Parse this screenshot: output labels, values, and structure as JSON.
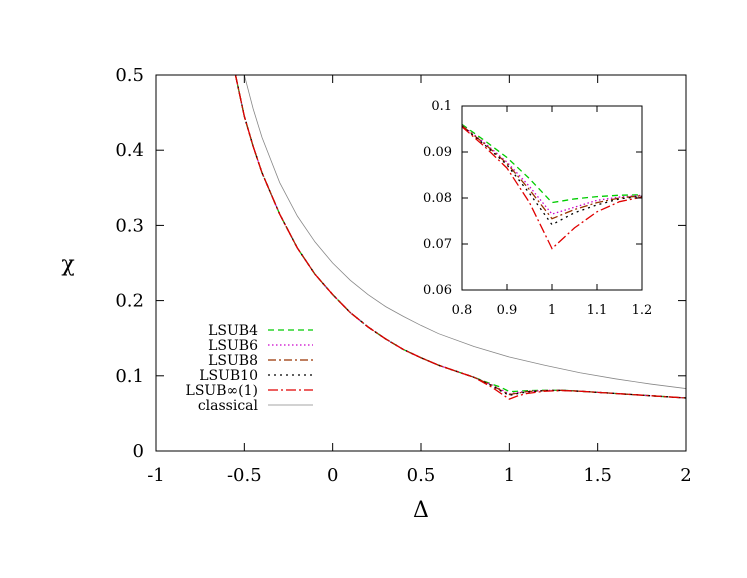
{
  "chart_data": [
    {
      "type": "line",
      "title": "",
      "xlabel": "Δ",
      "ylabel": "χ",
      "xlim": [
        -1,
        2
      ],
      "ylim": [
        0,
        0.5
      ],
      "xticks": [
        -1,
        -0.5,
        0,
        0.5,
        1,
        1.5,
        2
      ],
      "xtick_labels": [
        "-1",
        "-0.5",
        "0",
        "0.5",
        "1",
        "1.5",
        "2"
      ],
      "yticks": [
        0,
        0.1,
        0.2,
        0.3,
        0.4,
        0.5
      ],
      "ytick_labels": [
        "0",
        "0.1",
        "0.2",
        "0.3",
        "0.4",
        "0.5"
      ],
      "grid": false,
      "legend_position": "bottom-left",
      "series": [
        {
          "name": "LSUB4",
          "color": "#00cc00",
          "dash": "dashed",
          "x": [
            -0.55,
            -0.5,
            -0.45,
            -0.4,
            -0.3,
            -0.2,
            -0.1,
            0,
            0.1,
            0.2,
            0.3,
            0.4,
            0.5,
            0.6,
            0.7,
            0.8,
            0.9,
            0.95,
            1.0,
            1.05,
            1.1,
            1.2,
            1.3,
            1.4,
            1.5,
            1.6,
            1.7,
            1.8,
            1.9,
            2.0
          ],
          "y": [
            0.5,
            0.445,
            0.405,
            0.37,
            0.315,
            0.27,
            0.235,
            0.208,
            0.184,
            0.165,
            0.149,
            0.135,
            0.124,
            0.114,
            0.106,
            0.098,
            0.089,
            0.085,
            0.079,
            0.0795,
            0.0802,
            0.0808,
            0.0808,
            0.0795,
            0.078,
            0.0765,
            0.075,
            0.0735,
            0.072,
            0.0705
          ]
        },
        {
          "name": "LSUB6",
          "color": "#cc00cc",
          "dash": "dotted",
          "x": [
            -0.55,
            -0.5,
            -0.45,
            -0.4,
            -0.3,
            -0.2,
            -0.1,
            0,
            0.1,
            0.2,
            0.3,
            0.4,
            0.5,
            0.6,
            0.7,
            0.8,
            0.9,
            0.95,
            1.0,
            1.05,
            1.1,
            1.2,
            1.3,
            1.4,
            1.5,
            1.6,
            1.7,
            1.8,
            1.9,
            2.0
          ],
          "y": [
            0.5,
            0.445,
            0.405,
            0.37,
            0.315,
            0.27,
            0.235,
            0.208,
            0.184,
            0.165,
            0.149,
            0.135,
            0.124,
            0.114,
            0.106,
            0.098,
            0.088,
            0.082,
            0.076,
            0.078,
            0.0795,
            0.0805,
            0.0808,
            0.0795,
            0.078,
            0.0765,
            0.075,
            0.0735,
            0.072,
            0.0705
          ]
        },
        {
          "name": "LSUB8",
          "color": "#993300",
          "dash": "dashdot",
          "x": [
            -0.55,
            -0.5,
            -0.45,
            -0.4,
            -0.3,
            -0.2,
            -0.1,
            0,
            0.1,
            0.2,
            0.3,
            0.4,
            0.5,
            0.6,
            0.7,
            0.8,
            0.9,
            0.95,
            1.0,
            1.05,
            1.1,
            1.2,
            1.3,
            1.4,
            1.5,
            1.6,
            1.7,
            1.8,
            1.9,
            2.0
          ],
          "y": [
            0.5,
            0.445,
            0.405,
            0.37,
            0.315,
            0.27,
            0.235,
            0.208,
            0.184,
            0.165,
            0.149,
            0.135,
            0.124,
            0.114,
            0.106,
            0.098,
            0.0875,
            0.081,
            0.075,
            0.0772,
            0.079,
            0.0803,
            0.0807,
            0.0795,
            0.078,
            0.0765,
            0.075,
            0.0735,
            0.072,
            0.0705
          ]
        },
        {
          "name": "LSUB10",
          "color": "#000000",
          "dash": "densedot",
          "x": [
            -0.55,
            -0.5,
            -0.45,
            -0.4,
            -0.3,
            -0.2,
            -0.1,
            0,
            0.1,
            0.2,
            0.3,
            0.4,
            0.5,
            0.6,
            0.7,
            0.8,
            0.9,
            0.95,
            1.0,
            1.05,
            1.1,
            1.2,
            1.3,
            1.4,
            1.5,
            1.6,
            1.7,
            1.8,
            1.9,
            2.0
          ],
          "y": [
            0.5,
            0.445,
            0.405,
            0.37,
            0.315,
            0.27,
            0.235,
            0.208,
            0.184,
            0.165,
            0.149,
            0.135,
            0.124,
            0.114,
            0.106,
            0.098,
            0.087,
            0.08,
            0.074,
            0.0765,
            0.0785,
            0.0802,
            0.0806,
            0.0795,
            0.078,
            0.0765,
            0.075,
            0.0735,
            0.072,
            0.0705
          ]
        },
        {
          "name": "LSUB∞(1)",
          "color": "#e00000",
          "dash": "longdashdot",
          "x": [
            -0.55,
            -0.5,
            -0.45,
            -0.4,
            -0.3,
            -0.2,
            -0.1,
            0,
            0.1,
            0.2,
            0.3,
            0.4,
            0.5,
            0.6,
            0.7,
            0.8,
            0.9,
            0.95,
            1.0,
            1.05,
            1.1,
            1.2,
            1.3,
            1.4,
            1.5,
            1.6,
            1.7,
            1.8,
            1.9,
            2.0
          ],
          "y": [
            0.5,
            0.445,
            0.405,
            0.37,
            0.315,
            0.27,
            0.235,
            0.208,
            0.184,
            0.165,
            0.149,
            0.135,
            0.124,
            0.114,
            0.106,
            0.098,
            0.085,
            0.077,
            0.069,
            0.0735,
            0.0765,
            0.0795,
            0.0803,
            0.0795,
            0.078,
            0.0765,
            0.075,
            0.0735,
            0.072,
            0.0705
          ]
        },
        {
          "name": "classical",
          "color": "#888888",
          "dash": "solid",
          "x": [
            -0.5,
            -0.45,
            -0.4,
            -0.3,
            -0.2,
            -0.1,
            0,
            0.1,
            0.2,
            0.3,
            0.4,
            0.5,
            0.6,
            0.8,
            1.0,
            1.2,
            1.4,
            1.6,
            1.8,
            2.0
          ],
          "y": [
            0.5,
            0.455,
            0.417,
            0.357,
            0.3125,
            0.278,
            0.25,
            0.227,
            0.208,
            0.192,
            0.179,
            0.167,
            0.156,
            0.139,
            0.125,
            0.114,
            0.104,
            0.096,
            0.089,
            0.083
          ]
        }
      ]
    },
    {
      "type": "line",
      "title": "",
      "xlabel": "",
      "ylabel": "",
      "xlim": [
        0.8,
        1.2
      ],
      "ylim": [
        0.06,
        0.1
      ],
      "xticks": [
        0.8,
        0.9,
        1,
        1.1,
        1.2
      ],
      "xtick_labels": [
        "0.8",
        "0.9",
        "1",
        "1.1",
        "1.2"
      ],
      "yticks": [
        0.06,
        0.07,
        0.08,
        0.09,
        0.1
      ],
      "ytick_labels": [
        "0.06",
        "0.07",
        "0.08",
        "0.09",
        "0.1"
      ],
      "grid": false,
      "series": [
        {
          "color": "#00cc00",
          "dash": "dashed",
          "x": [
            0.8,
            0.85,
            0.9,
            0.95,
            1.0,
            1.05,
            1.1,
            1.15,
            1.2
          ],
          "y": [
            0.096,
            0.0925,
            0.0888,
            0.0842,
            0.079,
            0.0798,
            0.0803,
            0.0806,
            0.0807
          ]
        },
        {
          "color": "#cc00cc",
          "dash": "dotted",
          "x": [
            0.8,
            0.85,
            0.9,
            0.95,
            1.0,
            1.05,
            1.1,
            1.15,
            1.2
          ],
          "y": [
            0.0958,
            0.092,
            0.0878,
            0.0825,
            0.0765,
            0.078,
            0.0795,
            0.0802,
            0.0806
          ]
        },
        {
          "color": "#993300",
          "dash": "dashdot",
          "x": [
            0.8,
            0.85,
            0.9,
            0.95,
            1.0,
            1.05,
            1.1,
            1.15,
            1.2
          ],
          "y": [
            0.0957,
            0.0918,
            0.0875,
            0.0818,
            0.0755,
            0.0775,
            0.079,
            0.08,
            0.0805
          ]
        },
        {
          "color": "#000000",
          "dash": "densedot",
          "x": [
            0.8,
            0.85,
            0.9,
            0.95,
            1.0,
            1.05,
            1.1,
            1.15,
            1.2
          ],
          "y": [
            0.0956,
            0.0916,
            0.0872,
            0.081,
            0.0742,
            0.0768,
            0.0785,
            0.0798,
            0.0804
          ]
        },
        {
          "color": "#e00000",
          "dash": "longdashdot",
          "x": [
            0.8,
            0.85,
            0.9,
            0.95,
            1.0,
            1.05,
            1.1,
            1.15,
            1.2
          ],
          "y": [
            0.0955,
            0.0912,
            0.0865,
            0.079,
            0.069,
            0.0735,
            0.077,
            0.0792,
            0.0802
          ]
        }
      ]
    }
  ]
}
